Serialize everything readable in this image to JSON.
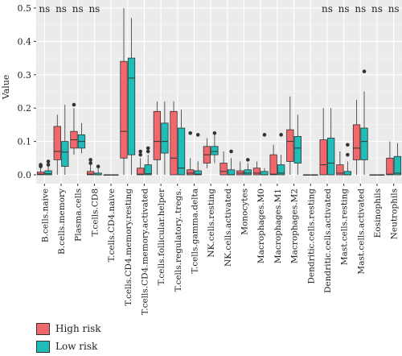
{
  "chart_data": {
    "type": "box",
    "ylabel": "Value",
    "ylim": [
      0,
      0.5
    ],
    "yticks": [
      "0.0",
      "0.1",
      "0.2",
      "0.3",
      "0.4",
      "0.5"
    ],
    "grid": true,
    "categories": [
      "B.cells.naive",
      "B.cells.memory",
      "Plasma.cells",
      "T.cells.CD8",
      "T.cells.CD4.naive",
      "T.cells.CD4.memory.resting",
      "T.cells.CD4.memory.activated",
      "T.cells.follicular.helper",
      "T.cells.regulatory..tregs.",
      "T.cells.gamma.delta",
      "NK.cells.resting",
      "NK.cells.activated",
      "Monocytes",
      "Macrophages.M0",
      "Macrophages.M1",
      "Macrophages.M2",
      "Dendritic.cells.resting",
      "Dendritic.cells.activated",
      "Mast.cells.resting",
      "Mast.cells.activated",
      "Eosinophils",
      "Neutrophils"
    ],
    "significance": [
      "ns",
      "ns",
      "ns",
      "ns",
      "",
      "",
      "",
      "",
      "",
      "",
      "",
      "",
      "",
      "",
      "",
      "",
      "",
      "ns",
      "ns",
      "ns",
      "ns",
      "ns"
    ],
    "series": [
      {
        "name": "High risk",
        "color": "#f0686b",
        "boxes": [
          {
            "min": 0,
            "q1": 0,
            "median": 0.002,
            "q3": 0.008,
            "max": 0.02,
            "outliers": [
              0.025,
              0.03
            ]
          },
          {
            "min": 0,
            "q1": 0.045,
            "median": 0.07,
            "q3": 0.145,
            "max": 0.18,
            "outliers": []
          },
          {
            "min": 0.06,
            "q1": 0.08,
            "median": 0.105,
            "q3": 0.13,
            "max": 0.2,
            "outliers": [
              0.21
            ]
          },
          {
            "min": 0,
            "q1": 0,
            "median": 0.002,
            "q3": 0.01,
            "max": 0.03,
            "outliers": [
              0.035,
              0.045
            ]
          },
          {
            "min": 0,
            "q1": 0,
            "median": 0,
            "q3": 0,
            "max": 0,
            "outliers": []
          },
          {
            "min": 0,
            "q1": 0.05,
            "median": 0.13,
            "q3": 0.34,
            "max": 0.5,
            "outliers": []
          },
          {
            "min": 0,
            "q1": 0,
            "median": 0.002,
            "q3": 0.02,
            "max": 0.05,
            "outliers": [
              0.06,
              0.07
            ]
          },
          {
            "min": 0,
            "q1": 0.045,
            "median": 0.1,
            "q3": 0.19,
            "max": 0.22,
            "outliers": []
          },
          {
            "min": 0,
            "q1": 0,
            "median": 0.05,
            "q3": 0.19,
            "max": 0.22,
            "outliers": []
          },
          {
            "min": 0,
            "q1": 0,
            "median": 0.005,
            "q3": 0.015,
            "max": 0.05,
            "outliers": [
              0.125
            ]
          },
          {
            "min": 0.02,
            "q1": 0.035,
            "median": 0.06,
            "q3": 0.085,
            "max": 0.11,
            "outliers": []
          },
          {
            "min": 0,
            "q1": 0,
            "median": 0.01,
            "q3": 0.035,
            "max": 0.07,
            "outliers": []
          },
          {
            "min": 0,
            "q1": 0,
            "median": 0.005,
            "q3": 0.012,
            "max": 0.04,
            "outliers": []
          },
          {
            "min": 0,
            "q1": 0,
            "median": 0.005,
            "q3": 0.02,
            "max": 0.04,
            "outliers": []
          },
          {
            "min": 0,
            "q1": 0,
            "median": 0.002,
            "q3": 0.06,
            "max": 0.09,
            "outliers": []
          },
          {
            "min": 0,
            "q1": 0.04,
            "median": 0.1,
            "q3": 0.135,
            "max": 0.235,
            "outliers": []
          },
          {
            "min": 0,
            "q1": 0,
            "median": 0,
            "q3": 0,
            "max": 0,
            "outliers": []
          },
          {
            "min": 0,
            "q1": 0,
            "median": 0.03,
            "q3": 0.105,
            "max": 0.2,
            "outliers": []
          },
          {
            "min": 0,
            "q1": 0,
            "median": 0.005,
            "q3": 0.03,
            "max": 0.07,
            "outliers": []
          },
          {
            "min": 0,
            "q1": 0.045,
            "median": 0.08,
            "q3": 0.15,
            "max": 0.225,
            "outliers": []
          },
          {
            "min": 0,
            "q1": 0,
            "median": 0,
            "q3": 0,
            "max": 0,
            "outliers": []
          },
          {
            "min": 0,
            "q1": 0,
            "median": 0.002,
            "q3": 0.05,
            "max": 0.1,
            "outliers": []
          }
        ]
      },
      {
        "name": "Low risk",
        "color": "#1fbcb8",
        "boxes": [
          {
            "min": 0,
            "q1": 0,
            "median": 0.003,
            "q3": 0.012,
            "max": 0.025,
            "outliers": [
              0.03,
              0.04
            ]
          },
          {
            "min": 0,
            "q1": 0.025,
            "median": 0.068,
            "q3": 0.1,
            "max": 0.21,
            "outliers": []
          },
          {
            "min": 0.065,
            "q1": 0.08,
            "median": 0.1,
            "q3": 0.12,
            "max": 0.155,
            "outliers": []
          },
          {
            "min": 0,
            "q1": 0,
            "median": 0,
            "q3": 0.005,
            "max": 0.02,
            "outliers": [
              0.025
            ]
          },
          {
            "min": 0,
            "q1": 0,
            "median": 0,
            "q3": 0,
            "max": 0,
            "outliers": []
          },
          {
            "min": 0,
            "q1": 0.06,
            "median": 0.29,
            "q3": 0.35,
            "max": 0.47,
            "outliers": []
          },
          {
            "min": 0,
            "q1": 0,
            "median": 0.003,
            "q3": 0.03,
            "max": 0.06,
            "outliers": [
              0.07,
              0.08
            ]
          },
          {
            "min": 0,
            "q1": 0.065,
            "median": 0.1,
            "q3": 0.155,
            "max": 0.22,
            "outliers": []
          },
          {
            "min": 0,
            "q1": 0,
            "median": 0.02,
            "q3": 0.14,
            "max": 0.195,
            "outliers": []
          },
          {
            "min": 0,
            "q1": 0,
            "median": 0.002,
            "q3": 0.012,
            "max": 0.04,
            "outliers": [
              0.12
            ]
          },
          {
            "min": 0.035,
            "q1": 0.06,
            "median": 0.07,
            "q3": 0.085,
            "max": 0.12,
            "outliers": [
              0.125
            ]
          },
          {
            "min": 0,
            "q1": 0,
            "median": 0,
            "q3": 0.015,
            "max": 0.05,
            "outliers": [
              0.07
            ]
          },
          {
            "min": 0,
            "q1": 0,
            "median": 0.005,
            "q3": 0.015,
            "max": 0.035,
            "outliers": [
              0.045
            ]
          },
          {
            "min": 0,
            "q1": 0,
            "median": 0,
            "q3": 0.01,
            "max": 0.02,
            "outliers": [
              0.12
            ]
          },
          {
            "min": 0,
            "q1": 0,
            "median": 0.005,
            "q3": 0.03,
            "max": 0.06,
            "outliers": [
              0.12
            ]
          },
          {
            "min": 0,
            "q1": 0.035,
            "median": 0.08,
            "q3": 0.115,
            "max": 0.18,
            "outliers": []
          },
          {
            "min": 0,
            "q1": 0,
            "median": 0,
            "q3": 0,
            "max": 0,
            "outliers": []
          },
          {
            "min": 0,
            "q1": 0,
            "median": 0.035,
            "q3": 0.11,
            "max": 0.2,
            "outliers": []
          },
          {
            "min": 0,
            "q1": 0,
            "median": 0,
            "q3": 0.01,
            "max": 0.04,
            "outliers": [
              0.06,
              0.09
            ]
          },
          {
            "min": 0,
            "q1": 0.045,
            "median": 0.1,
            "q3": 0.14,
            "max": 0.25,
            "outliers": [
              0.31
            ]
          },
          {
            "min": 0,
            "q1": 0,
            "median": 0,
            "q3": 0,
            "max": 0,
            "outliers": []
          },
          {
            "min": 0,
            "q1": 0,
            "median": 0.005,
            "q3": 0.055,
            "max": 0.095,
            "outliers": []
          }
        ]
      }
    ]
  }
}
